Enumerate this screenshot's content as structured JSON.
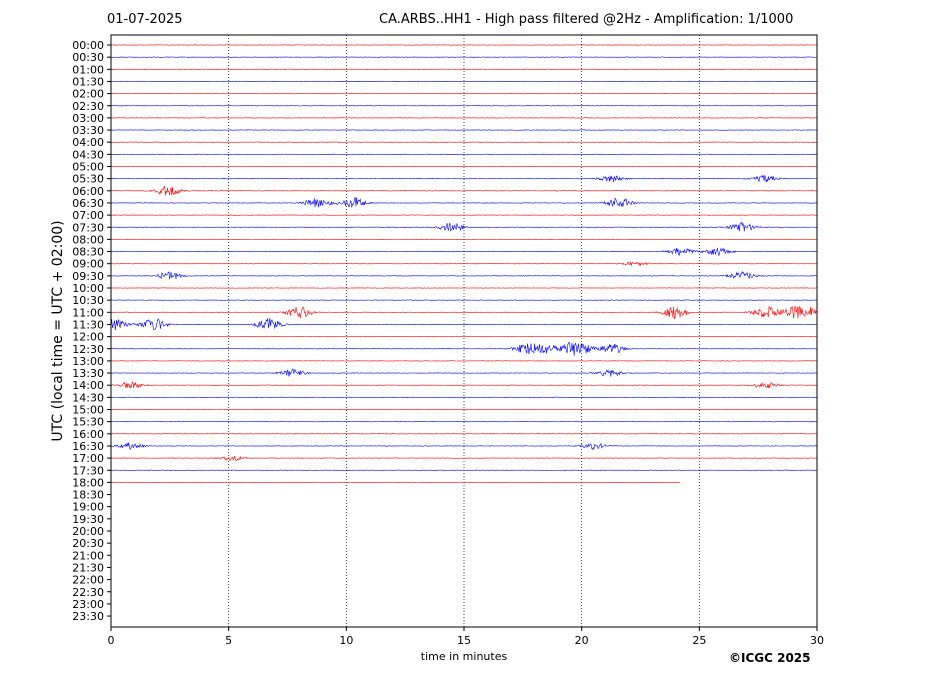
{
  "header": {
    "date": "01-07-2025",
    "title": "CA.ARBS..HH1 - High pass filtered @2Hz - Amplification: 1/1000"
  },
  "footer": {
    "copyright": "©ICGC 2025"
  },
  "chart_data": {
    "type": "line",
    "title": "CA.ARBS..HH1 - High pass filtered @2Hz - Amplification: 1/1000",
    "xlabel": "time in minutes",
    "ylabel": "UTC (local time = UTC + 02:00)",
    "xlim": [
      0,
      30
    ],
    "x_ticks": [
      0,
      5,
      10,
      15,
      20,
      25,
      30
    ],
    "y_tick_labels": [
      "00:00",
      "00:30",
      "01:00",
      "01:30",
      "02:00",
      "02:30",
      "03:00",
      "03:30",
      "04:00",
      "04:30",
      "05:00",
      "05:30",
      "06:00",
      "06:30",
      "07:00",
      "07:30",
      "08:00",
      "08:30",
      "09:00",
      "09:30",
      "10:00",
      "10:30",
      "11:00",
      "11:30",
      "12:00",
      "12:30",
      "13:00",
      "13:30",
      "14:00",
      "14:30",
      "15:00",
      "15:30",
      "16:00",
      "16:30",
      "17:00",
      "17:30",
      "18:00",
      "18:30",
      "19:00",
      "19:30",
      "20:00",
      "20:30",
      "21:00",
      "21:30",
      "22:00",
      "22:30",
      "23:00",
      "23:30"
    ],
    "grid_x": true,
    "line_colors": [
      "#ff0000",
      "#0000ff"
    ],
    "traces_recorded": 37,
    "last_trace_end_minute": 24.2,
    "events": [
      {
        "row": "05:30",
        "minutes": [
          21.3,
          27.8
        ],
        "amplitude": 0.4
      },
      {
        "row": "06:00",
        "minutes": [
          2.4
        ],
        "amplitude": 0.6
      },
      {
        "row": "06:30",
        "minutes": [
          8.8,
          10.3,
          21.6
        ],
        "amplitude": 0.7
      },
      {
        "row": "07:30",
        "minutes": [
          14.5,
          26.8
        ],
        "amplitude": 0.6
      },
      {
        "row": "08:30",
        "minutes": [
          24.2,
          25.8
        ],
        "amplitude": 0.5
      },
      {
        "row": "09:00",
        "minutes": [
          22.3
        ],
        "amplitude": 0.25
      },
      {
        "row": "09:30",
        "minutes": [
          2.5,
          26.8
        ],
        "amplitude": 0.5
      },
      {
        "row": "11:00",
        "minutes": [
          8.0,
          24.0,
          27.8,
          29.0,
          30.0
        ],
        "amplitude": 0.8
      },
      {
        "row": "11:30",
        "minutes": [
          0.1,
          1.8,
          6.7
        ],
        "amplitude": 0.8
      },
      {
        "row": "12:30",
        "minutes": [
          17.6,
          18.4,
          19.5,
          20.0,
          21.3
        ],
        "amplitude": 0.6
      },
      {
        "row": "13:30",
        "minutes": [
          7.7,
          21.2
        ],
        "amplitude": 0.5
      },
      {
        "row": "14:00",
        "minutes": [
          0.8,
          27.8
        ],
        "amplitude": 0.4
      },
      {
        "row": "16:30",
        "minutes": [
          0.8,
          20.5
        ],
        "amplitude": 0.4
      },
      {
        "row": "17:00",
        "minutes": [
          5.2
        ],
        "amplitude": 0.3
      }
    ]
  }
}
